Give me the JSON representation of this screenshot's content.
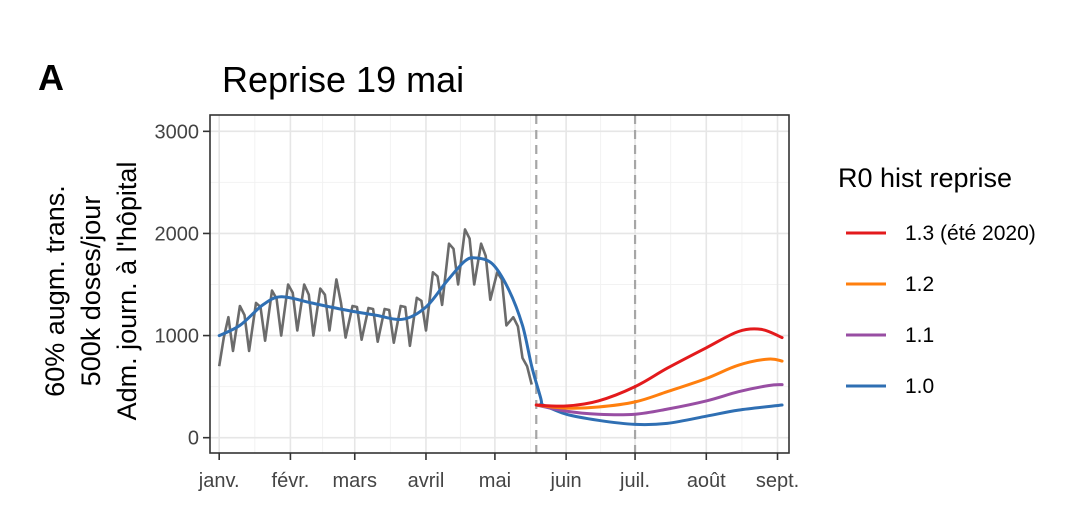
{
  "chart_data": {
    "type": "line",
    "panel_label": "A",
    "title": "Reprise 19 mai",
    "ylabel_lines": [
      "60% augm. trans.",
      "500k doses/jour",
      "Adm. journ. à l'hôpital"
    ],
    "ylim": [
      0,
      3000
    ],
    "y_ticks": [
      0,
      1000,
      2000,
      3000
    ],
    "y_tick_labels": [
      "0",
      "1000",
      "2000",
      "3000"
    ],
    "x_ticks": [
      {
        "date": "2021-01-01",
        "label": "janv."
      },
      {
        "date": "2021-02-01",
        "label": "févr."
      },
      {
        "date": "2021-03-01",
        "label": "mars"
      },
      {
        "date": "2021-04-01",
        "label": "avril"
      },
      {
        "date": "2021-05-01",
        "label": "mai"
      },
      {
        "date": "2021-06-01",
        "label": "juin"
      },
      {
        "date": "2021-07-01",
        "label": "juil."
      },
      {
        "date": "2021-08-01",
        "label": "août"
      },
      {
        "date": "2021-09-01",
        "label": "sept."
      }
    ],
    "xlim": [
      "2020-12-28",
      "2021-09-06"
    ],
    "vlines": [
      "2021-05-19",
      "2021-07-01"
    ],
    "grid": true,
    "observed": {
      "color": "#6b6b6b",
      "points": [
        [
          "2021-01-01",
          700
        ],
        [
          "2021-01-03",
          980
        ],
        [
          "2021-01-05",
          1180
        ],
        [
          "2021-01-07",
          850
        ],
        [
          "2021-01-10",
          1290
        ],
        [
          "2021-01-12",
          1200
        ],
        [
          "2021-01-14",
          850
        ],
        [
          "2021-01-17",
          1320
        ],
        [
          "2021-01-19",
          1280
        ],
        [
          "2021-01-21",
          950
        ],
        [
          "2021-01-24",
          1440
        ],
        [
          "2021-01-26",
          1360
        ],
        [
          "2021-01-28",
          1000
        ],
        [
          "2021-01-31",
          1500
        ],
        [
          "2021-02-02",
          1420
        ],
        [
          "2021-02-04",
          1050
        ],
        [
          "2021-02-07",
          1500
        ],
        [
          "2021-02-09",
          1400
        ],
        [
          "2021-02-11",
          1000
        ],
        [
          "2021-02-14",
          1460
        ],
        [
          "2021-02-16",
          1400
        ],
        [
          "2021-02-18",
          1050
        ],
        [
          "2021-02-21",
          1550
        ],
        [
          "2021-02-23",
          1320
        ],
        [
          "2021-02-25",
          980
        ],
        [
          "2021-02-28",
          1290
        ],
        [
          "2021-03-02",
          1280
        ],
        [
          "2021-03-04",
          960
        ],
        [
          "2021-03-07",
          1270
        ],
        [
          "2021-03-09",
          1260
        ],
        [
          "2021-03-11",
          940
        ],
        [
          "2021-03-14",
          1260
        ],
        [
          "2021-03-16",
          1250
        ],
        [
          "2021-03-18",
          930
        ],
        [
          "2021-03-21",
          1290
        ],
        [
          "2021-03-23",
          1280
        ],
        [
          "2021-03-25",
          900
        ],
        [
          "2021-03-28",
          1370
        ],
        [
          "2021-03-30",
          1340
        ],
        [
          "2021-04-01",
          1050
        ],
        [
          "2021-04-04",
          1620
        ],
        [
          "2021-04-06",
          1580
        ],
        [
          "2021-04-08",
          1300
        ],
        [
          "2021-04-11",
          1900
        ],
        [
          "2021-04-13",
          1850
        ],
        [
          "2021-04-15",
          1500
        ],
        [
          "2021-04-18",
          2040
        ],
        [
          "2021-04-20",
          1950
        ],
        [
          "2021-04-22",
          1500
        ],
        [
          "2021-04-25",
          1900
        ],
        [
          "2021-04-27",
          1780
        ],
        [
          "2021-04-29",
          1350
        ],
        [
          "2021-05-02",
          1620
        ],
        [
          "2021-05-04",
          1550
        ],
        [
          "2021-05-06",
          1100
        ],
        [
          "2021-05-09",
          1180
        ],
        [
          "2021-05-11",
          1090
        ],
        [
          "2021-05-13",
          780
        ],
        [
          "2021-05-15",
          700
        ],
        [
          "2021-05-17",
          520
        ]
      ]
    },
    "series": [
      {
        "name": "1.3 (été 2020)",
        "color": "#e31a1c",
        "points": [
          [
            "2021-05-19",
            320
          ],
          [
            "2021-06-01",
            310
          ],
          [
            "2021-06-15",
            360
          ],
          [
            "2021-07-01",
            500
          ],
          [
            "2021-07-15",
            680
          ],
          [
            "2021-08-01",
            880
          ],
          [
            "2021-08-15",
            1040
          ],
          [
            "2021-08-25",
            1060
          ],
          [
            "2021-09-03",
            980
          ]
        ]
      },
      {
        "name": "1.2",
        "color": "#ff7f0e",
        "points": [
          [
            "2021-05-19",
            320
          ],
          [
            "2021-06-01",
            290
          ],
          [
            "2021-06-15",
            300
          ],
          [
            "2021-07-01",
            350
          ],
          [
            "2021-07-15",
            450
          ],
          [
            "2021-08-01",
            580
          ],
          [
            "2021-08-15",
            710
          ],
          [
            "2021-08-28",
            770
          ],
          [
            "2021-09-03",
            750
          ]
        ]
      },
      {
        "name": "1.1",
        "color": "#984ea3",
        "points": [
          [
            "2021-05-19",
            320
          ],
          [
            "2021-06-01",
            260
          ],
          [
            "2021-06-15",
            230
          ],
          [
            "2021-07-01",
            230
          ],
          [
            "2021-07-15",
            280
          ],
          [
            "2021-08-01",
            360
          ],
          [
            "2021-08-15",
            450
          ],
          [
            "2021-08-28",
            510
          ],
          [
            "2021-09-03",
            520
          ]
        ]
      },
      {
        "name": "1.0",
        "color": "#2f6fb3",
        "fit_points": [
          [
            "2021-01-01",
            1000
          ],
          [
            "2021-01-10",
            1100
          ],
          [
            "2021-01-20",
            1300
          ],
          [
            "2021-01-28",
            1380
          ],
          [
            "2021-02-10",
            1320
          ],
          [
            "2021-02-25",
            1250
          ],
          [
            "2021-03-10",
            1200
          ],
          [
            "2021-03-22",
            1160
          ],
          [
            "2021-04-01",
            1280
          ],
          [
            "2021-04-10",
            1530
          ],
          [
            "2021-04-18",
            1730
          ],
          [
            "2021-04-23",
            1760
          ],
          [
            "2021-04-30",
            1700
          ],
          [
            "2021-05-07",
            1450
          ],
          [
            "2021-05-13",
            1100
          ],
          [
            "2021-05-17",
            700
          ],
          [
            "2021-05-21",
            380
          ]
        ],
        "points": [
          [
            "2021-05-21",
            330
          ],
          [
            "2021-06-01",
            230
          ],
          [
            "2021-06-15",
            170
          ],
          [
            "2021-07-01",
            130
          ],
          [
            "2021-07-15",
            140
          ],
          [
            "2021-08-01",
            210
          ],
          [
            "2021-08-15",
            270
          ],
          [
            "2021-09-03",
            320
          ]
        ]
      }
    ],
    "legend": {
      "title": "R0 hist reprise",
      "position": "right",
      "entries": [
        "1.3 (été 2020)",
        "1.2",
        "1.1",
        "1.0"
      ]
    }
  }
}
